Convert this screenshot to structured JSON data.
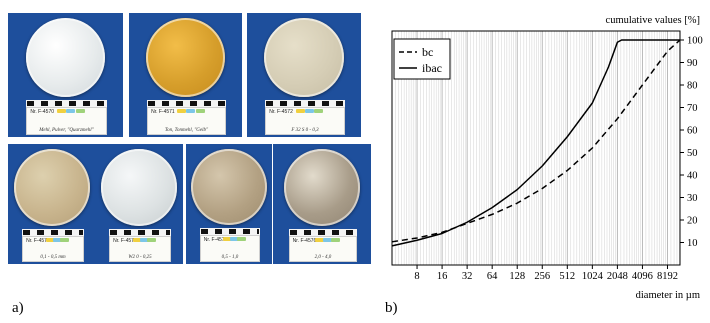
{
  "figure": {
    "panel_a_label": "a)",
    "panel_b_label": "b)"
  },
  "sample_cards": [
    {
      "nr": "Nr. F-4570",
      "handwriting": "Mehl, Pulver, \"Quarzmehl\"",
      "fill": "#e7ebec",
      "grain": "#ffffff",
      "rim": "#cfd6da"
    },
    {
      "nr": "Nr. F-4571",
      "handwriting": "Ton, Tonmehl, \"Gelb\"",
      "fill": "#d69e2b",
      "grain": "#f2bd48",
      "rim": "#c58a1c"
    },
    {
      "nr": "Nr. F-4572",
      "handwriting": "F 32 S   0 - 0,3",
      "fill": "#d5cdb5",
      "grain": "#e6dfc9",
      "rim": "#c5bca3"
    },
    {
      "nr": "Nr. F-4573",
      "handwriting": "0,1 - 0,5 mm",
      "fill": "#c8b48d",
      "grain": "#ddd0ae",
      "rim": "#b49e77"
    },
    {
      "nr": "Nr. F-4574",
      "handwriting": "W2   0 - 0,25",
      "fill": "#dde2e3",
      "grain": "#f5f7f8",
      "rim": "#c6ccce"
    },
    {
      "nr": "Nr. F-4575",
      "handwriting": "0,5 - 1,0",
      "fill": "#b3a183",
      "grain": "#d4c6ac",
      "rim": "#9c8a6c"
    },
    {
      "nr": "Nr. F-4576",
      "handwriting": "2,0 - 4,0",
      "fill": "#a89c89",
      "grain": "#e2dbcc",
      "rim": "#8e8270"
    }
  ],
  "chart_data": {
    "type": "line",
    "title": "",
    "ylabel": "cumulative values [%]",
    "xlabel": "diameter in µm",
    "x_scale": "log2",
    "xlim": [
      4,
      11585
    ],
    "ylim": [
      0,
      104
    ],
    "x_ticks": [
      8,
      16,
      32,
      64,
      128,
      256,
      512,
      1024,
      2048,
      4096,
      8192
    ],
    "x_tick_labels": [
      "8",
      "16",
      "32",
      "64",
      "128",
      "256",
      "512",
      "1024",
      "2048",
      "4096",
      "8192"
    ],
    "y_ticks": [
      10,
      20,
      30,
      40,
      50,
      60,
      70,
      80,
      90,
      100
    ],
    "y_tick_labels": [
      "10",
      "20",
      "30",
      "40",
      "50",
      "60",
      "70",
      "80",
      "90",
      "100"
    ],
    "grid": "vertical",
    "legend_position": "top-left",
    "series": [
      {
        "name": "bc",
        "style": "dashed",
        "color": "#000000",
        "points": [
          [
            4,
            10.3
          ],
          [
            8,
            12.0
          ],
          [
            16,
            14.5
          ],
          [
            32,
            18.5
          ],
          [
            64,
            22.5
          ],
          [
            128,
            27.5
          ],
          [
            256,
            34.0
          ],
          [
            512,
            42.0
          ],
          [
            1024,
            52.0
          ],
          [
            2048,
            65.0
          ],
          [
            4096,
            80.0
          ],
          [
            8192,
            95.0
          ],
          [
            11585,
            100.0
          ]
        ]
      },
      {
        "name": "ibac",
        "style": "solid",
        "color": "#000000",
        "points": [
          [
            4,
            8.5
          ],
          [
            8,
            11.0
          ],
          [
            16,
            14.0
          ],
          [
            32,
            19.0
          ],
          [
            64,
            25.5
          ],
          [
            128,
            33.5
          ],
          [
            256,
            44.0
          ],
          [
            512,
            57.0
          ],
          [
            1024,
            72.0
          ],
          [
            1600,
            88.0
          ],
          [
            2048,
            99.0
          ],
          [
            2300,
            100.0
          ],
          [
            11585,
            100.0
          ]
        ]
      }
    ]
  }
}
